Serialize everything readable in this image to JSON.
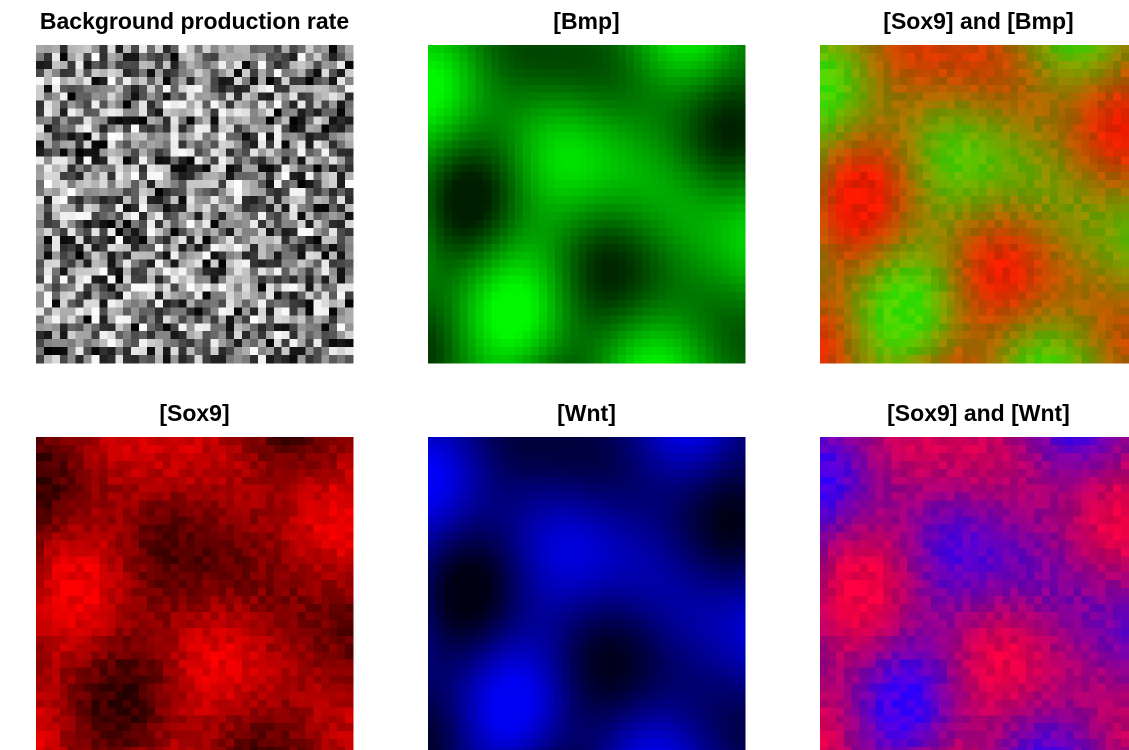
{
  "panels": [
    {
      "title": "Background production rate"
    },
    {
      "title": "[Bmp]"
    },
    {
      "title": "[Sox9] and [Bmp]"
    },
    {
      "title": "[Sox9]"
    },
    {
      "title": "[Wnt]"
    },
    {
      "title": "[Sox9] and [Wnt]"
    }
  ]
}
